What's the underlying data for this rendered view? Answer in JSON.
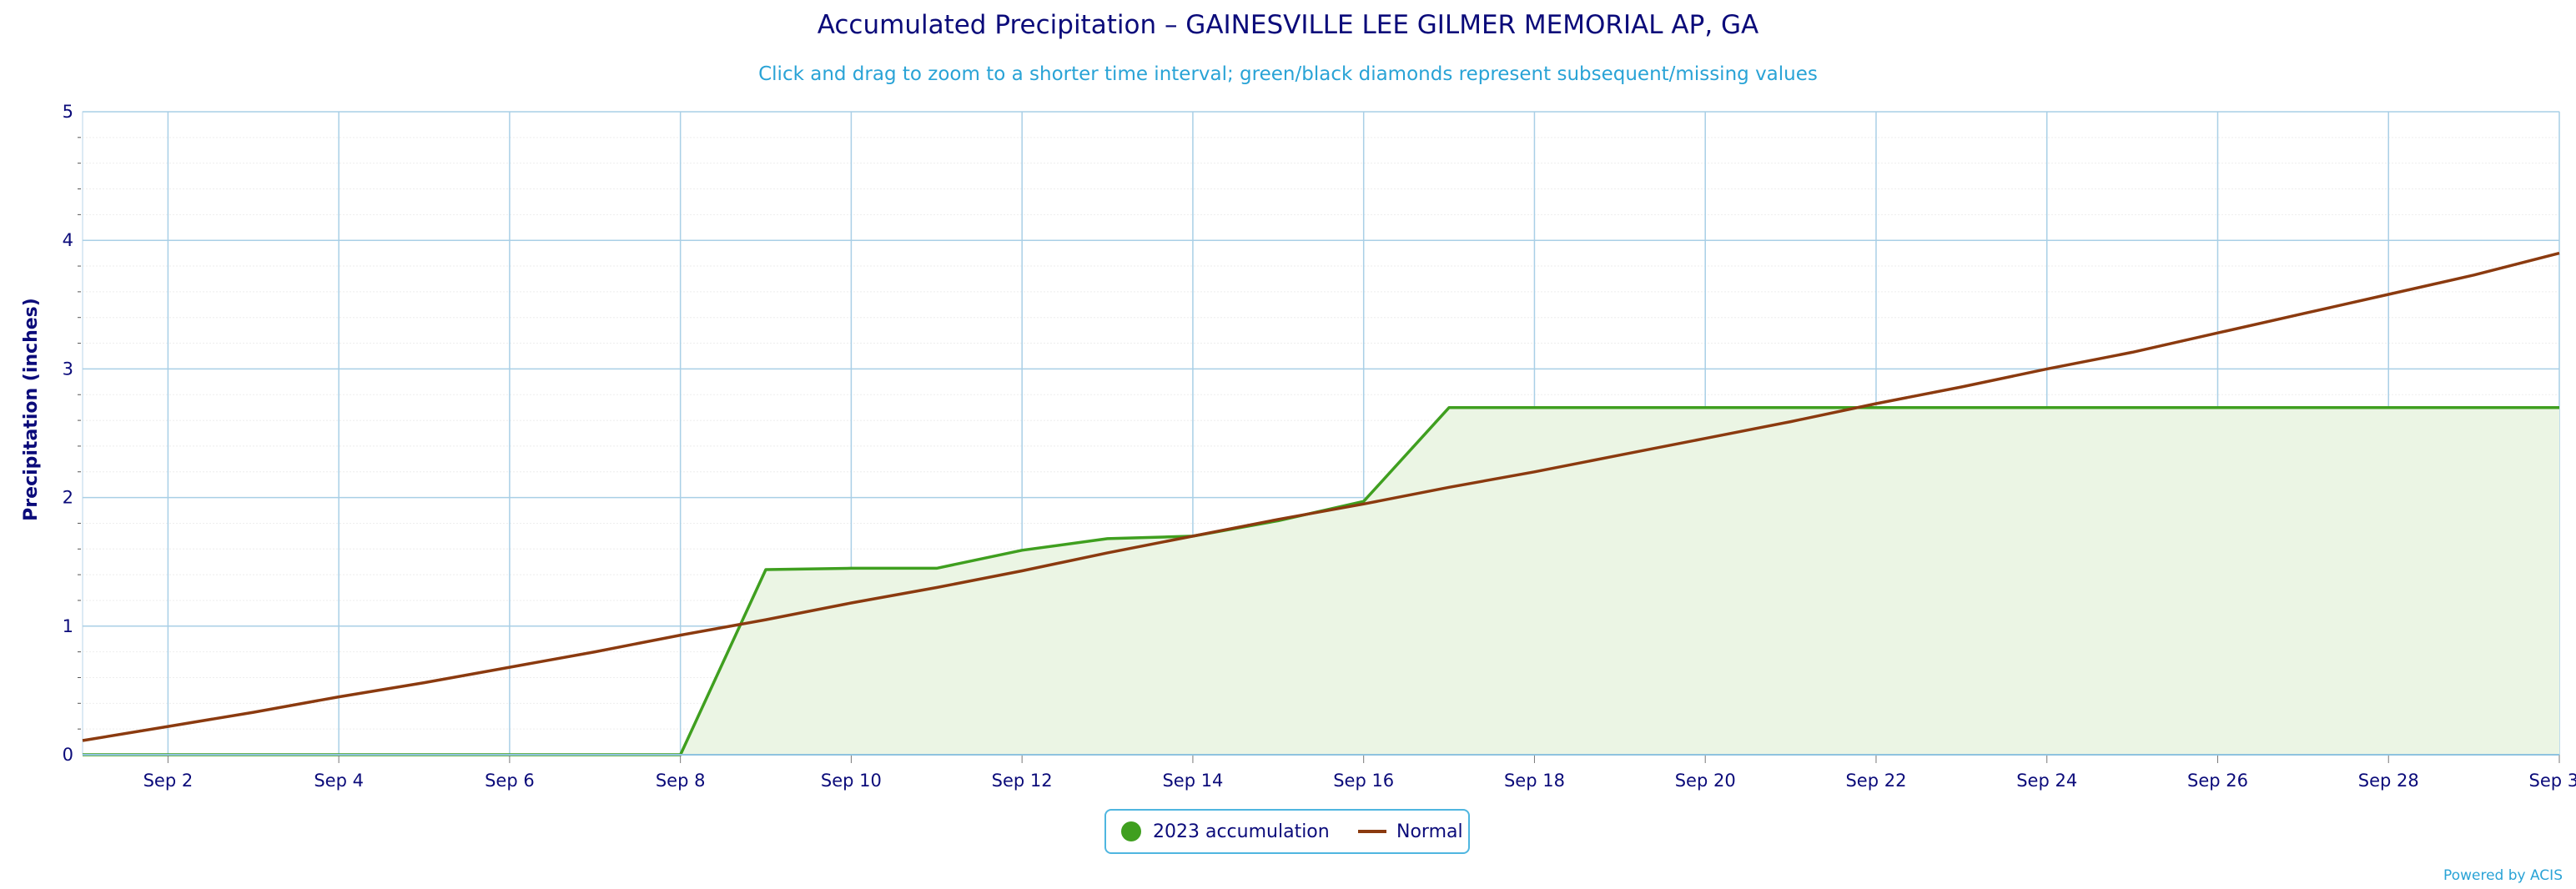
{
  "chart_data": {
    "type": "area",
    "title": "Accumulated Precipitation – GAINESVILLE LEE GILMER MEMORIAL AP, GA",
    "subtitle": "Click and drag to zoom to a shorter time interval; green/black diamonds represent subsequent/missing values",
    "ylabel": "Precipitation (inches)",
    "xlabel": "",
    "ylim": [
      0,
      5
    ],
    "y_ticks": [
      "0",
      "1",
      "2",
      "3",
      "4",
      "5"
    ],
    "x_range_days": [
      1,
      30
    ],
    "x_tick_days": [
      2,
      4,
      6,
      8,
      10,
      12,
      14,
      16,
      18,
      20,
      22,
      24,
      26,
      28,
      30
    ],
    "x_tick_labels": [
      "Sep 2",
      "Sep 4",
      "Sep 6",
      "Sep 8",
      "Sep 10",
      "Sep 12",
      "Sep 14",
      "Sep 16",
      "Sep 18",
      "Sep 20",
      "Sep 22",
      "Sep 24",
      "Sep 26",
      "Sep 28",
      "Sep 30"
    ],
    "grid": true,
    "legend_position": "bottom-center",
    "series": [
      {
        "name": "2023 accumulation",
        "style": "area",
        "color": "#3f9f1f",
        "fill": "#ebf5e4",
        "x": [
          1,
          2,
          3,
          4,
          5,
          6,
          7,
          8,
          9,
          10,
          11,
          12,
          13,
          14,
          15,
          16,
          17,
          18,
          19,
          20,
          21,
          22,
          23,
          24,
          25,
          26,
          27,
          28,
          29,
          30
        ],
        "values": [
          0,
          0,
          0,
          0,
          0,
          0,
          0,
          0,
          1.44,
          1.45,
          1.45,
          1.59,
          1.68,
          1.7,
          1.82,
          1.97,
          2.7,
          2.7,
          2.7,
          2.7,
          2.7,
          2.7,
          2.7,
          2.7,
          2.7,
          2.7,
          2.7,
          2.7,
          2.7,
          2.7
        ]
      },
      {
        "name": "Normal",
        "style": "line",
        "color": "#8b3a0f",
        "x": [
          1,
          2,
          3,
          4,
          5,
          6,
          7,
          8,
          9,
          10,
          11,
          12,
          13,
          14,
          15,
          16,
          17,
          18,
          19,
          20,
          21,
          22,
          23,
          24,
          25,
          26,
          27,
          28,
          29,
          30
        ],
        "values": [
          0.11,
          0.22,
          0.33,
          0.45,
          0.56,
          0.68,
          0.8,
          0.93,
          1.05,
          1.18,
          1.3,
          1.43,
          1.57,
          1.7,
          1.83,
          1.95,
          2.08,
          2.2,
          2.33,
          2.46,
          2.59,
          2.73,
          2.86,
          3.0,
          3.13,
          3.28,
          3.43,
          3.58,
          3.73,
          3.9
        ]
      }
    ]
  },
  "legend": {
    "accum_label": "2023 accumulation",
    "normal_label": "Normal"
  },
  "footer": {
    "credit": "Powered by ACIS"
  }
}
